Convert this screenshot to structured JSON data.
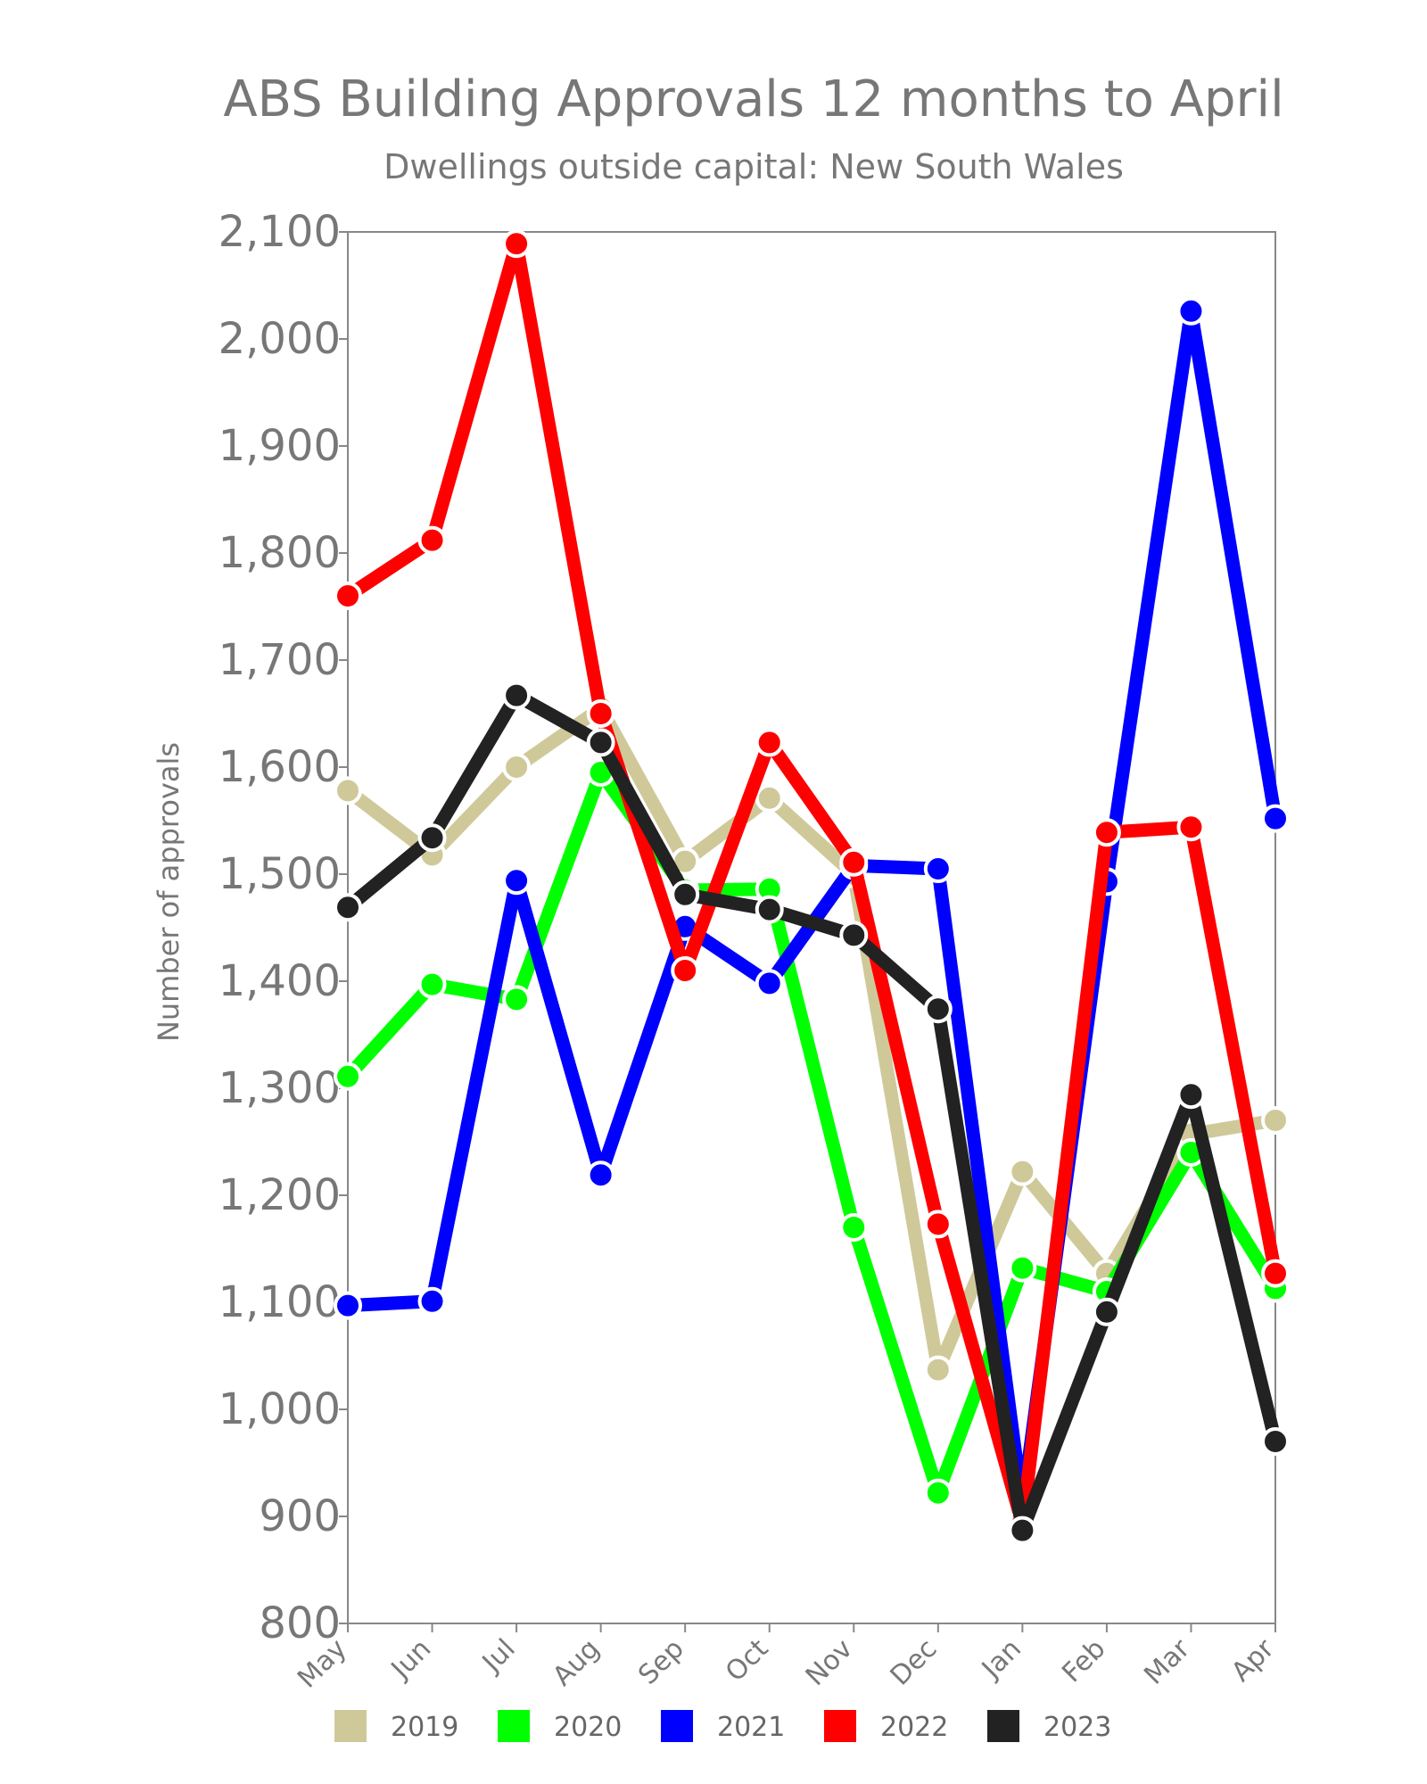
{
  "chart_data": {
    "type": "line",
    "title": "ABS Building Approvals 12 months to April",
    "subtitle": "Dwellings outside capital: New South Wales",
    "xlabel": "",
    "ylabel": "Number of approvals",
    "categories": [
      "May",
      "Jun",
      "Jul",
      "Aug",
      "Sep",
      "Oct",
      "Nov",
      "Dec",
      "Jan",
      "Feb",
      "Mar",
      "Apr"
    ],
    "ylim": [
      800,
      2100
    ],
    "yticks": [
      800,
      900,
      1000,
      1100,
      1200,
      1300,
      1400,
      1500,
      1600,
      1700,
      1800,
      1900,
      2000,
      2100
    ],
    "ytick_labels": [
      "800",
      "900",
      "1,000",
      "1,100",
      "1,200",
      "1,300",
      "1,400",
      "1,500",
      "1,600",
      "1,700",
      "1,800",
      "1,900",
      "2,000",
      "2,100"
    ],
    "grid": false,
    "legend_position": "bottom",
    "series": [
      {
        "name": "2019",
        "color": "#cfc99a",
        "values": [
          1578,
          1518,
          1600,
          1655,
          1512,
          1571,
          1500,
          1037,
          1222,
          1127,
          1257,
          1270
        ]
      },
      {
        "name": "2020",
        "color": "#00ff00",
        "values": [
          1311,
          1397,
          1383,
          1595,
          1485,
          1486,
          1170,
          922,
          1132,
          1110,
          1240,
          1113
        ]
      },
      {
        "name": "2021",
        "color": "#0000ff",
        "values": [
          1097,
          1101,
          1494,
          1219,
          1451,
          1398,
          1508,
          1505,
          910,
          1493,
          2026,
          1552
        ]
      },
      {
        "name": "2022",
        "color": "#ff0000",
        "values": [
          1760,
          1812,
          2089,
          1650,
          1410,
          1623,
          1511,
          1173,
          893,
          1539,
          1544,
          1127
        ]
      },
      {
        "name": "2023",
        "color": "#222222",
        "values": [
          1469,
          1534,
          1667,
          1623,
          1481,
          1467,
          1443,
          1374,
          887,
          1091,
          1294,
          970
        ]
      }
    ]
  }
}
